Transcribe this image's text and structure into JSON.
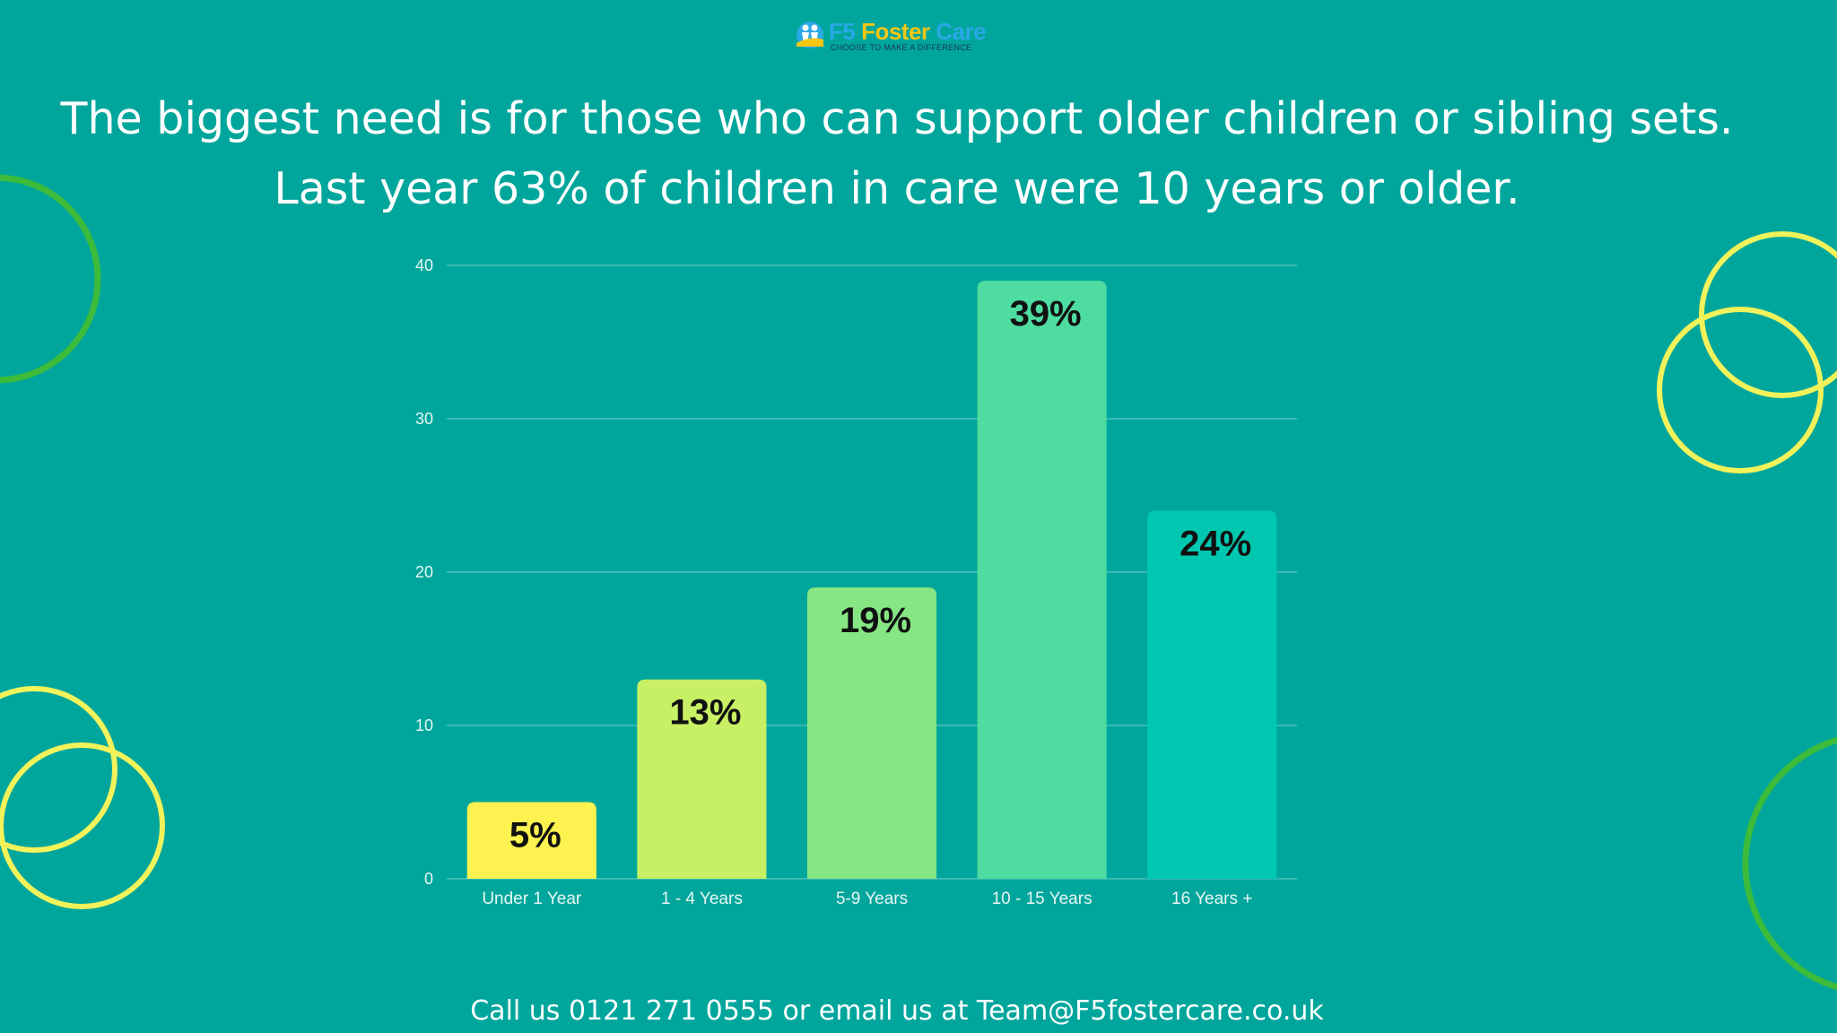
{
  "brand": {
    "name_part1": "F5",
    "name_part2": "Foster",
    "name_part3": "Care",
    "tagline": "CHOOSE TO MAKE A DIFFERENCE",
    "colors": {
      "blue": "#2ba8e6",
      "yellow": "#f6c615"
    }
  },
  "headline": {
    "line1": "The biggest need is for those who can support older children or sibling sets.",
    "line2": "Last year 63% of children in care were 10 years or older."
  },
  "footer": {
    "contact": "Call us 0121 271 0555 or email us at Team@F5fostercare.co.uk"
  },
  "colors": {
    "background": "#00a69c",
    "gridline": "#4cc2b8",
    "tick_text": "#e8f6f4",
    "label_text": "#111111",
    "deco_green": "#3dbb3a",
    "deco_yellow": "#f2f25a"
  },
  "chart_data": {
    "type": "bar",
    "categories": [
      "Under 1 Year",
      "1 - 4 Years",
      "5-9 Years",
      "10 - 15 Years",
      "16 Years +"
    ],
    "values": [
      5,
      13,
      19,
      39,
      24
    ],
    "data_labels": [
      "5%",
      "13%",
      "19%",
      "39%",
      "24%"
    ],
    "bar_colors": [
      "#fef250",
      "#c8f065",
      "#86e683",
      "#4edca0",
      "#00c8b0"
    ],
    "ylim": [
      0,
      40
    ],
    "yticks": [
      0,
      10,
      20,
      30,
      40
    ],
    "grid": true,
    "title": "",
    "xlabel": "",
    "ylabel": ""
  }
}
